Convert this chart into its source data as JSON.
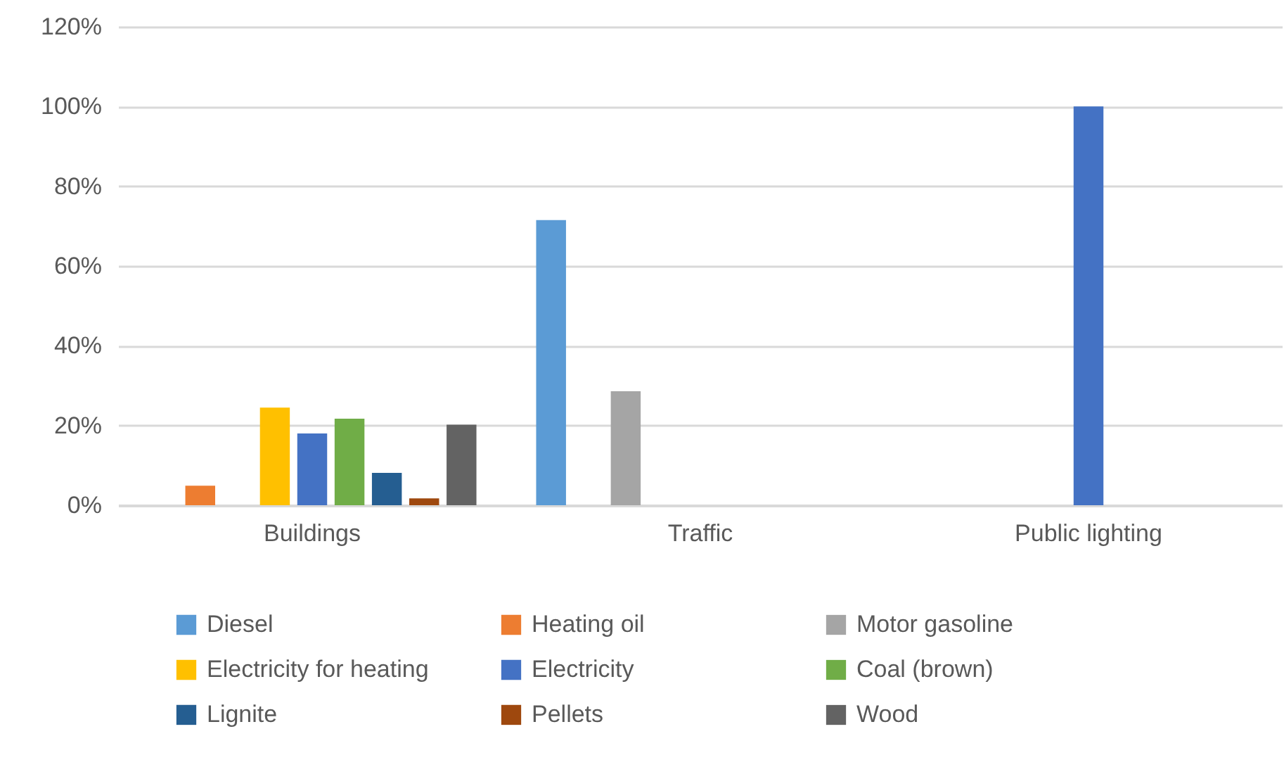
{
  "chart_data": {
    "type": "bar",
    "categories": [
      "Buildings",
      "Traffic",
      "Public lighting"
    ],
    "series": [
      {
        "name": "Diesel",
        "color": "#5b9bd5",
        "values": [
          null,
          71.5,
          null
        ]
      },
      {
        "name": "Heating oil",
        "color": "#ed7d31",
        "values": [
          4.9,
          null,
          null
        ]
      },
      {
        "name": "Motor gasoline",
        "color": "#a5a5a5",
        "values": [
          null,
          28.6,
          null
        ]
      },
      {
        "name": "Electricity for heating",
        "color": "#ffc000",
        "values": [
          24.5,
          null,
          null
        ]
      },
      {
        "name": "Electricity",
        "color": "#4472c4",
        "values": [
          18.0,
          null,
          100
        ]
      },
      {
        "name": "Coal (brown)",
        "color": "#70ad47",
        "values": [
          21.7,
          null,
          null
        ]
      },
      {
        "name": "Lignite",
        "color": "#255e91",
        "values": [
          8.1,
          null,
          null
        ]
      },
      {
        "name": "Pellets",
        "color": "#9e480e",
        "values": [
          1.7,
          null,
          null
        ]
      },
      {
        "name": "Wood",
        "color": "#636363",
        "values": [
          20.2,
          null,
          null
        ]
      }
    ],
    "ylim": [
      0,
      120
    ],
    "yticks": [
      {
        "value": 0,
        "label": "0%"
      },
      {
        "value": 20,
        "label": "20%"
      },
      {
        "value": 40,
        "label": "40%"
      },
      {
        "value": 60,
        "label": "60%"
      },
      {
        "value": 80,
        "label": "80%"
      },
      {
        "value": 100,
        "label": "100%"
      },
      {
        "value": 120,
        "label": "120%"
      }
    ],
    "grid": "y",
    "legend": "bottom"
  }
}
